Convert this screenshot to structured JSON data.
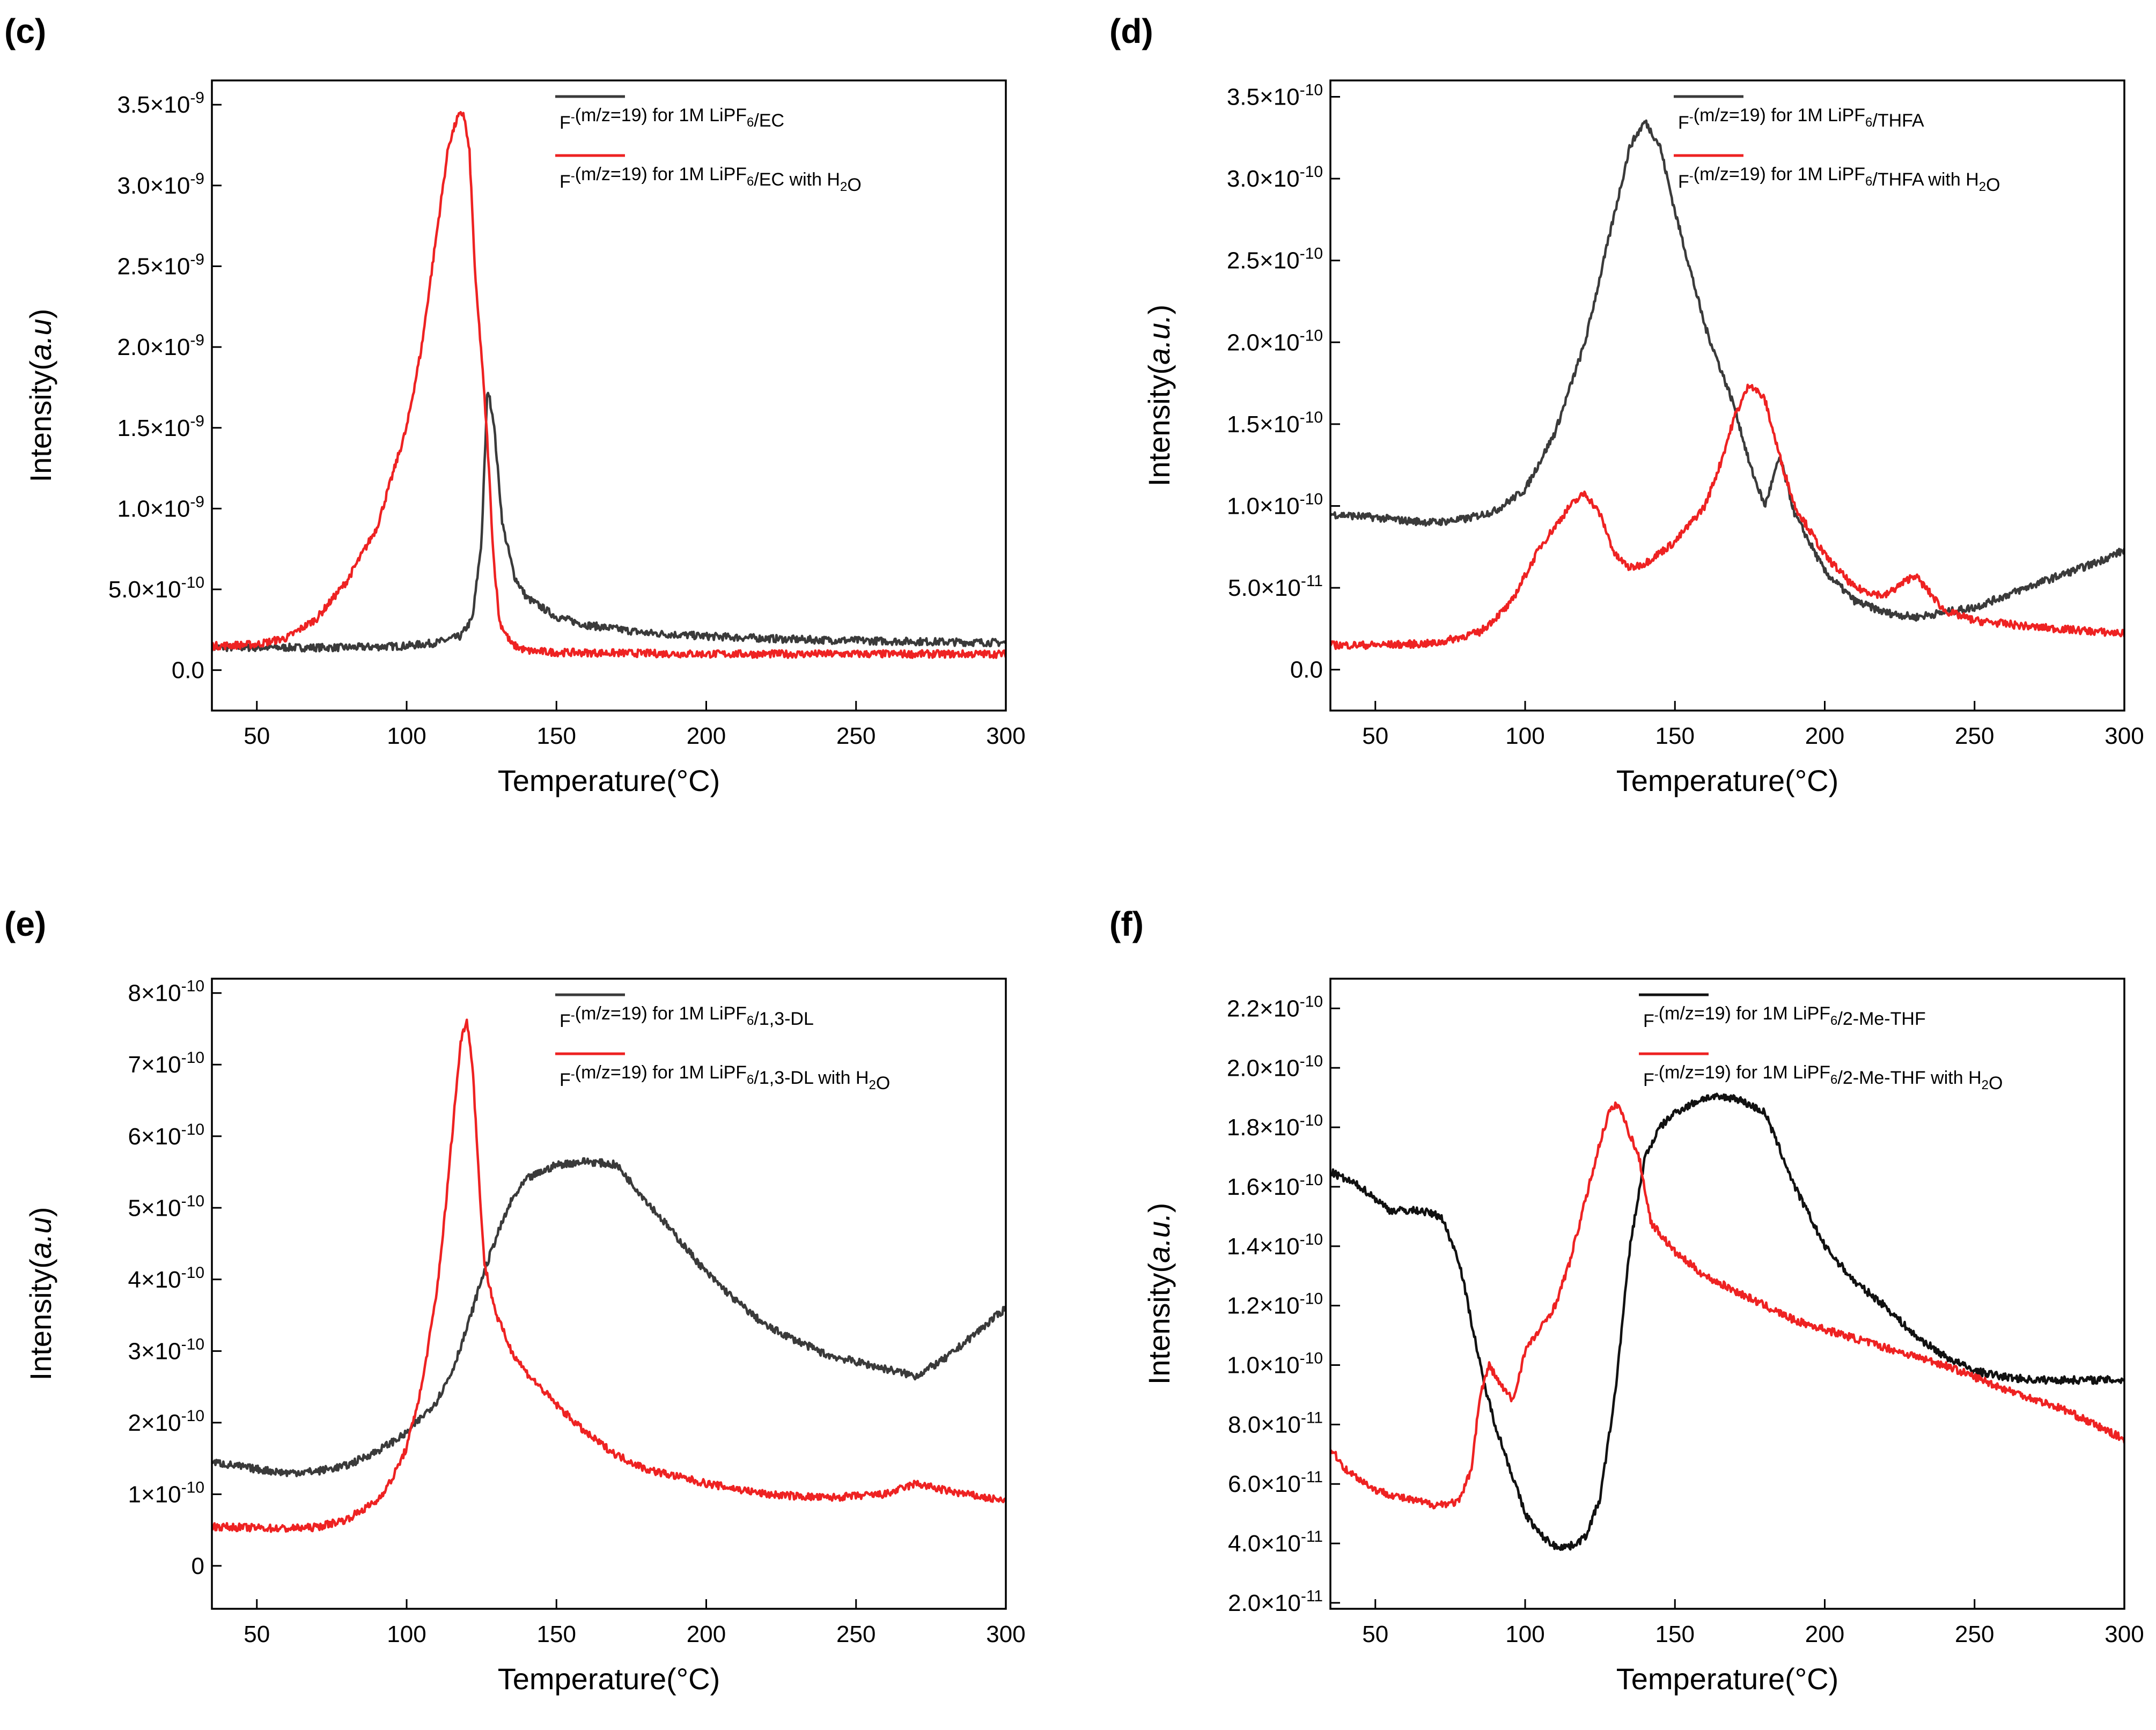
{
  "colors": {
    "series_black": "#3a3a3a",
    "series_red": "#ee2222",
    "axes": "#000000"
  },
  "chart_data": [
    {
      "panel": "(c)",
      "type": "line",
      "xlabel": "Temperature(°C)",
      "ylabel": "Intensity(a.u)",
      "xlim": [
        35,
        300
      ],
      "ylim": [
        -2.5e-10,
        3.65e-09
      ],
      "xticks": [
        "50",
        "100",
        "150",
        "200",
        "250",
        "300"
      ],
      "yticks": [
        "0.0",
        "5.0×10⁻¹⁰",
        "1.0×10⁻⁹",
        "1.5×10⁻⁹",
        "2.0×10⁻⁹",
        "2.5×10⁻⁹",
        "3.0×10⁻⁹",
        "3.5×10⁻⁹"
      ],
      "grid": false,
      "legend_position": "top-right",
      "series": [
        {
          "name": "F⁻(m/z=19) for 1M LiPF₆/EC",
          "color": "#3a3a3a",
          "x": [
            35,
            60,
            80,
            100,
            110,
            118,
            122,
            125,
            127,
            129,
            132,
            136,
            140,
            150,
            160,
            180,
            200,
            230,
            260,
            300
          ],
          "y": [
            1.4e-10,
            1.4e-10,
            1.4e-10,
            1.5e-10,
            1.7e-10,
            2.1e-10,
            3.2e-10,
            8e-10,
            1.75e-09,
            1.55e-09,
            9e-10,
            5.8e-10,
            4.5e-10,
            3.3e-10,
            2.8e-10,
            2.3e-10,
            2.1e-10,
            1.9e-10,
            1.8e-10,
            1.7e-10
          ]
        },
        {
          "name": "F⁻(m/z=19) for 1M LiPF₆/EC with H₂O",
          "color": "#ee2222",
          "x": [
            35,
            50,
            60,
            70,
            80,
            90,
            100,
            105,
            110,
            114,
            117,
            119,
            121,
            123,
            125,
            127,
            129,
            131,
            135,
            140,
            150,
            200,
            250,
            300
          ],
          "y": [
            1.5e-10,
            1.6e-10,
            2e-10,
            3.2e-10,
            5.5e-10,
            8.8e-10,
            1.5e-09,
            2e-09,
            2.7e-09,
            3.25e-09,
            3.42e-09,
            3.45e-09,
            3.2e-09,
            2.4e-09,
            1.95e-09,
            1.4e-09,
            7e-10,
            3e-10,
            1.6e-10,
            1.2e-10,
            1.1e-10,
            1e-10,
            1e-10,
            1e-10
          ]
        }
      ]
    },
    {
      "panel": "(d)",
      "type": "line",
      "xlabel": "Temperature(°C)",
      "ylabel": "Intensity(a.u.)",
      "xlim": [
        35,
        300
      ],
      "ylim": [
        -2.5e-11,
        3.6e-10
      ],
      "xticks": [
        "50",
        "100",
        "150",
        "200",
        "250",
        "300"
      ],
      "yticks": [
        "0.0",
        "5.0×10⁻¹¹",
        "1.0×10⁻¹⁰",
        "1.5×10⁻¹⁰",
        "2.0×10⁻¹⁰",
        "2.5×10⁻¹⁰",
        "3.0×10⁻¹⁰",
        "3.5×10⁻¹⁰"
      ],
      "grid": false,
      "legend_position": "top-right",
      "series": [
        {
          "name": "F⁻(m/z=19) for 1M LiPF₆/THFA",
          "color": "#3a3a3a",
          "x": [
            35,
            50,
            60,
            70,
            80,
            90,
            100,
            110,
            120,
            130,
            135,
            140,
            145,
            150,
            160,
            170,
            175,
            180,
            185,
            190,
            200,
            210,
            220,
            230,
            250,
            270,
            290,
            300
          ],
          "y": [
            9.5e-11,
            9.3e-11,
            9.1e-11,
            9e-11,
            9.2e-11,
            9.7e-11,
            1.1e-10,
            1.45e-10,
            2e-10,
            2.8e-10,
            3.2e-10,
            3.35e-10,
            3.2e-10,
            2.8e-10,
            2.1e-10,
            1.6e-10,
            1.25e-10,
            1e-10,
            1.3e-10,
            9.5e-11,
            6e-11,
            4.2e-11,
            3.5e-11,
            3.2e-11,
            3.8e-11,
            5.2e-11,
            6.5e-11,
            7.3e-11
          ]
        },
        {
          "name": "F⁻(m/z=19) for 1M LiPF₆/THFA with H₂O",
          "color": "#ee2222",
          "x": [
            35,
            50,
            70,
            85,
            95,
            105,
            115,
            120,
            125,
            130,
            135,
            140,
            150,
            160,
            165,
            170,
            175,
            180,
            185,
            190,
            200,
            210,
            220,
            230,
            240,
            250,
            270,
            300
          ],
          "y": [
            1.5e-11,
            1.5e-11,
            1.6e-11,
            2.3e-11,
            4e-11,
            7.5e-11,
            1e-10,
            1.08e-10,
            9.5e-11,
            7e-11,
            6.2e-11,
            6.5e-11,
            7.8e-11,
            1e-10,
            1.25e-10,
            1.55e-10,
            1.75e-10,
            1.65e-10,
            1.3e-10,
            1e-10,
            7e-11,
            5e-11,
            4.5e-11,
            5.8e-11,
            3.6e-11,
            3e-11,
            2.6e-11,
            2.2e-11
          ]
        }
      ]
    },
    {
      "panel": "(e)",
      "type": "line",
      "xlabel": "Temperature(°C)",
      "ylabel": "Intensity(a.u)",
      "xlim": [
        35,
        300
      ],
      "ylim": [
        -6e-11,
        8.2e-10
      ],
      "xticks": [
        "50",
        "100",
        "150",
        "200",
        "250",
        "300"
      ],
      "yticks": [
        "0",
        "1×10⁻¹⁰",
        "2×10⁻¹⁰",
        "3×10⁻¹⁰",
        "4×10⁻¹⁰",
        "5×10⁻¹⁰",
        "6×10⁻¹⁰",
        "7×10⁻¹⁰",
        "8×10⁻¹⁰"
      ],
      "grid": false,
      "legend_position": "top-right",
      "series": [
        {
          "name": "F⁻(m/z=19) for 1M LiPF₆/1,3-DL",
          "color": "#3a3a3a",
          "x": [
            35,
            50,
            60,
            70,
            80,
            90,
            100,
            110,
            115,
            120,
            125,
            130,
            135,
            140,
            150,
            160,
            170,
            180,
            190,
            200,
            210,
            220,
            240,
            260,
            270,
            280,
            290,
            300
          ],
          "y": [
            1.45e-10,
            1.35e-10,
            1.3e-10,
            1.32e-10,
            1.4e-10,
            1.6e-10,
            1.85e-10,
            2.3e-10,
            2.7e-10,
            3.3e-10,
            4e-10,
            4.6e-10,
            5.1e-10,
            5.4e-10,
            5.6e-10,
            5.65e-10,
            5.6e-10,
            5.1e-10,
            4.6e-10,
            4.1e-10,
            3.7e-10,
            3.35e-10,
            2.95e-10,
            2.75e-10,
            2.65e-10,
            2.9e-10,
            3.25e-10,
            3.6e-10
          ]
        },
        {
          "name": "F⁻(m/z=19) for 1M LiPF₆/1,3-DL with H₂O",
          "color": "#ee2222",
          "x": [
            35,
            50,
            60,
            70,
            80,
            90,
            95,
            100,
            105,
            110,
            113,
            116,
            118,
            120,
            122,
            124,
            126,
            130,
            135,
            140,
            150,
            160,
            170,
            180,
            200,
            220,
            240,
            260,
            270,
            280,
            300
          ],
          "y": [
            5.5e-11,
            5.3e-11,
            5.2e-11,
            5.4e-11,
            6.5e-11,
            9e-11,
            1.2e-10,
            1.65e-10,
            2.5e-10,
            3.8e-10,
            5e-10,
            6.4e-10,
            7.3e-10,
            7.65e-10,
            7e-10,
            5.5e-10,
            4.2e-10,
            3.5e-10,
            3e-10,
            2.7e-10,
            2.25e-10,
            1.85e-10,
            1.55e-10,
            1.35e-10,
            1.15e-10,
            1e-10,
            9.5e-11,
            1e-10,
            1.15e-10,
            1.05e-10,
            9e-11
          ]
        }
      ]
    },
    {
      "panel": "(f)",
      "type": "line",
      "xlabel": "Temperature(°C)",
      "ylabel": "Intensity(a.u.)",
      "xlim": [
        35,
        300
      ],
      "ylim": [
        1.8e-11,
        2.3e-10
      ],
      "xticks": [
        "50",
        "100",
        "150",
        "200",
        "250",
        "300"
      ],
      "yticks": [
        "2.0×10⁻¹¹",
        "4.0×10⁻¹¹",
        "6.0×10⁻¹¹",
        "8.0×10⁻¹¹",
        "1.0×10⁻¹⁰",
        "1.2×10⁻¹⁰",
        "1.4×10⁻¹⁰",
        "1.6×10⁻¹⁰",
        "1.8×10⁻¹⁰",
        "2.0×10⁻¹⁰",
        "2.2×10⁻¹⁰"
      ],
      "grid": false,
      "legend_position": "top-center",
      "series": [
        {
          "name": "F⁻(m/z=19) for 1M LiPF₆/2-Me-THF",
          "color": "#111111",
          "x": [
            35,
            45,
            55,
            65,
            72,
            78,
            82,
            86,
            90,
            95,
            100,
            105,
            110,
            115,
            120,
            125,
            130,
            135,
            140,
            145,
            150,
            160,
            170,
            180,
            190,
            200,
            210,
            220,
            230,
            240,
            250,
            260,
            270,
            280,
            290,
            300
          ],
          "y": [
            1.65e-10,
            1.6e-10,
            1.52e-10,
            1.52e-10,
            1.5e-10,
            1.35e-10,
            1.15e-10,
            9.5e-11,
            8e-11,
            6.5e-11,
            5e-11,
            4.3e-11,
            3.9e-11,
            3.9e-11,
            4.2e-11,
            5.5e-11,
            9e-11,
            1.4e-10,
            1.7e-10,
            1.8e-10,
            1.85e-10,
            1.9e-10,
            1.9e-10,
            1.85e-10,
            1.6e-10,
            1.4e-10,
            1.28e-10,
            1.2e-10,
            1.1e-10,
            1.03e-10,
            9.8e-11,
            9.6e-11,
            9.5e-11,
            9.5e-11,
            9.5e-11,
            9.5e-11
          ]
        },
        {
          "name": "F⁻(m/z=19) for 1M LiPF₆/2-Me-THF with H₂O",
          "color": "#ee2222",
          "x": [
            35,
            40,
            50,
            60,
            70,
            78,
            82,
            85,
            88,
            92,
            96,
            100,
            105,
            110,
            115,
            120,
            125,
            128,
            131,
            134,
            138,
            142,
            150,
            160,
            170,
            180,
            190,
            200,
            220,
            240,
            260,
            280,
            300
          ],
          "y": [
            7.2e-11,
            6.5e-11,
            5.8e-11,
            5.5e-11,
            5.3e-11,
            5.4e-11,
            6.5e-11,
            9e-11,
            1e-10,
            9.3e-11,
            8.8e-11,
            1.05e-10,
            1.12e-10,
            1.2e-10,
            1.35e-10,
            1.55e-10,
            1.75e-10,
            1.85e-10,
            1.88e-10,
            1.8e-10,
            1.7e-10,
            1.48e-10,
            1.38e-10,
            1.3e-10,
            1.25e-10,
            1.2e-10,
            1.15e-10,
            1.12e-10,
            1.06e-10,
            1e-10,
            9.2e-11,
            8.5e-11,
            7.5e-11
          ]
        }
      ]
    }
  ]
}
